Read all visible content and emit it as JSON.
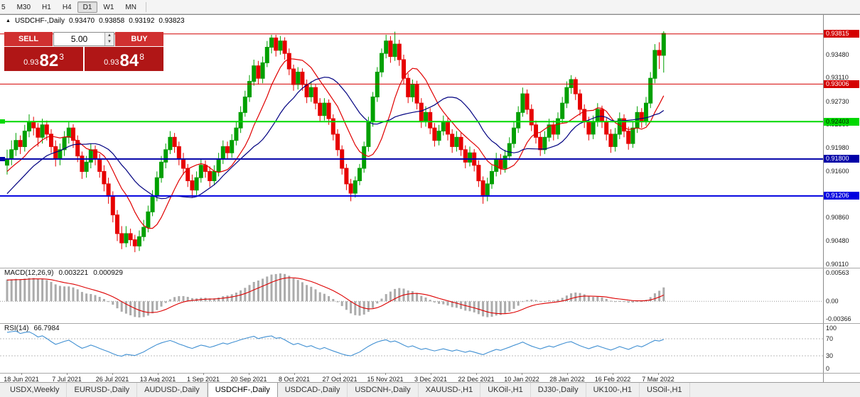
{
  "toolbar": {
    "timeframes": [
      {
        "label": "5",
        "active": false
      },
      {
        "label": "M30",
        "active": false
      },
      {
        "label": "H1",
        "active": false
      },
      {
        "label": "H4",
        "active": false
      },
      {
        "label": "D1",
        "active": true
      },
      {
        "label": "W1",
        "active": false
      },
      {
        "label": "MN",
        "active": false
      }
    ]
  },
  "chart": {
    "icon": "▲",
    "symbol_period": "USDCHF-,Daily",
    "open": "0.93470",
    "high": "0.93858",
    "low": "0.93192",
    "close": "0.93823"
  },
  "trade": {
    "sell_label": "SELL",
    "buy_label": "BUY",
    "volume": "5.00",
    "bid_prefix": "0.93",
    "bid_big": "82",
    "bid_sup": "3",
    "ask_prefix": "0.93",
    "ask_big": "84",
    "ask_sup": "8"
  },
  "colors": {
    "candle_up": "#00A000",
    "candle_down": "#E60000",
    "ma_fast": "#E00000",
    "ma_slow": "#000080",
    "macd_hist": "#ABABAB",
    "macd_signal": "#DD0000",
    "rsi_line": "#3F8FD2",
    "sell_button": "#D03030",
    "buy_button": "#D03030",
    "price_box": "#B01616"
  },
  "price_axis": {
    "ticks": [
      {
        "label": "0.93480",
        "price": 0.9348
      },
      {
        "label": "0.93110",
        "price": 0.9311
      },
      {
        "label": "0.92730",
        "price": 0.9273
      },
      {
        "label": "0.92360",
        "price": 0.9236
      },
      {
        "label": "0.91980",
        "price": 0.9198
      },
      {
        "label": "0.91600",
        "price": 0.916
      },
      {
        "label": "0.90860",
        "price": 0.9086
      },
      {
        "label": "0.90480",
        "price": 0.9048
      },
      {
        "label": "0.90110",
        "price": 0.9011
      }
    ]
  },
  "chart_data": {
    "type": "candlestick",
    "symbol": "USDCHF-",
    "timeframe": "Daily",
    "price_range": [
      0.9005,
      0.9412
    ],
    "x_labels": [
      "18 Jun 2021",
      "7 Jul 2021",
      "26 Jul 2021",
      "13 Aug 2021",
      "1 Sep 2021",
      "20 Sep 2021",
      "8 Oct 2021",
      "27 Oct 2021",
      "15 Nov 2021",
      "3 Dec 2021",
      "22 Dec 2021",
      "10 Jan 2022",
      "28 Jan 2022",
      "16 Feb 2022",
      "7 Mar 2022"
    ],
    "hlines": [
      {
        "price": 0.93815,
        "label": "0.93815",
        "color": "#D40000",
        "text_color": "#FFFFFF",
        "width": 1
      },
      {
        "price": 0.93006,
        "label": "0.93006",
        "color": "#D40000",
        "text_color": "#FFFFFF",
        "width": 1
      },
      {
        "price": 0.92403,
        "label": "0.92403",
        "color": "#00D800",
        "text_color": "#002200",
        "width": 2
      },
      {
        "price": 0.918,
        "label": "0.91800",
        "color": "#0000A8",
        "text_color": "#FFFFFF",
        "width": 2
      },
      {
        "price": 0.91206,
        "label": "0.91206",
        "color": "#0000E0",
        "text_color": "#FFFFFF",
        "width": 2
      }
    ],
    "moving_averages": [
      {
        "type": "sma",
        "period": 10,
        "color": "#E00000"
      },
      {
        "type": "sma",
        "period": 20,
        "color": "#000080"
      }
    ],
    "warmup_closes": [
      0.896,
      0.8975,
      0.899,
      0.9,
      0.9015,
      0.903,
      0.9025,
      0.9045,
      0.906,
      0.9055,
      0.9075,
      0.909,
      0.9085,
      0.9105,
      0.912,
      0.9115,
      0.9135,
      0.913,
      0.915,
      0.9145,
      0.916,
      0.9155,
      0.9168,
      0.9162,
      0.9172,
      0.9178
    ],
    "candles": [
      [
        0.917,
        0.9195,
        0.9155,
        0.918
      ],
      [
        0.918,
        0.921,
        0.917,
        0.9195
      ],
      [
        0.9195,
        0.9222,
        0.9185,
        0.921
      ],
      [
        0.921,
        0.9218,
        0.9188,
        0.92
      ],
      [
        0.92,
        0.9235,
        0.9192,
        0.9225
      ],
      [
        0.9225,
        0.9252,
        0.9215,
        0.924
      ],
      [
        0.924,
        0.9248,
        0.9218,
        0.923
      ],
      [
        0.923,
        0.9238,
        0.92,
        0.9215
      ],
      [
        0.9215,
        0.9245,
        0.9205,
        0.9235
      ],
      [
        0.9235,
        0.9242,
        0.921,
        0.922
      ],
      [
        0.922,
        0.9228,
        0.919,
        0.92
      ],
      [
        0.92,
        0.921,
        0.9168,
        0.918
      ],
      [
        0.918,
        0.9205,
        0.917,
        0.9195
      ],
      [
        0.9195,
        0.9225,
        0.9185,
        0.9215
      ],
      [
        0.9215,
        0.924,
        0.9205,
        0.923
      ],
      [
        0.923,
        0.9236,
        0.9198,
        0.921
      ],
      [
        0.921,
        0.9218,
        0.9175,
        0.9185
      ],
      [
        0.9185,
        0.9192,
        0.9148,
        0.916
      ],
      [
        0.916,
        0.9185,
        0.915,
        0.9175
      ],
      [
        0.9175,
        0.9205,
        0.9165,
        0.9195
      ],
      [
        0.9195,
        0.9202,
        0.917,
        0.918
      ],
      [
        0.918,
        0.9188,
        0.915,
        0.916
      ],
      [
        0.916,
        0.917,
        0.9128,
        0.914
      ],
      [
        0.914,
        0.915,
        0.9108,
        0.912
      ],
      [
        0.912,
        0.9128,
        0.9078,
        0.909
      ],
      [
        0.909,
        0.9098,
        0.9048,
        0.906
      ],
      [
        0.906,
        0.9072,
        0.9035,
        0.9045
      ],
      [
        0.9045,
        0.9072,
        0.9038,
        0.906
      ],
      [
        0.906,
        0.9068,
        0.904,
        0.905
      ],
      [
        0.905,
        0.9058,
        0.903,
        0.904
      ],
      [
        0.904,
        0.9065,
        0.9032,
        0.9055
      ],
      [
        0.9055,
        0.9082,
        0.9048,
        0.907
      ],
      [
        0.907,
        0.9105,
        0.9062,
        0.9095
      ],
      [
        0.9095,
        0.913,
        0.9088,
        0.912
      ],
      [
        0.912,
        0.916,
        0.9112,
        0.915
      ],
      [
        0.915,
        0.9185,
        0.9142,
        0.9175
      ],
      [
        0.9175,
        0.9205,
        0.9165,
        0.9195
      ],
      [
        0.9195,
        0.9225,
        0.9188,
        0.9215
      ],
      [
        0.9215,
        0.9222,
        0.919,
        0.92
      ],
      [
        0.92,
        0.9208,
        0.917,
        0.918
      ],
      [
        0.918,
        0.919,
        0.9155,
        0.9165
      ],
      [
        0.9165,
        0.9172,
        0.9135,
        0.9145
      ],
      [
        0.9145,
        0.9155,
        0.9118,
        0.913
      ],
      [
        0.913,
        0.916,
        0.9122,
        0.915
      ],
      [
        0.915,
        0.918,
        0.9142,
        0.917
      ],
      [
        0.917,
        0.9178,
        0.915,
        0.916
      ],
      [
        0.916,
        0.9168,
        0.9135,
        0.9145
      ],
      [
        0.9145,
        0.917,
        0.9138,
        0.916
      ],
      [
        0.916,
        0.919,
        0.9152,
        0.918
      ],
      [
        0.918,
        0.921,
        0.9172,
        0.92
      ],
      [
        0.92,
        0.9208,
        0.918,
        0.919
      ],
      [
        0.919,
        0.922,
        0.9182,
        0.921
      ],
      [
        0.921,
        0.924,
        0.9202,
        0.923
      ],
      [
        0.923,
        0.9265,
        0.9222,
        0.9255
      ],
      [
        0.9255,
        0.929,
        0.9248,
        0.928
      ],
      [
        0.928,
        0.9315,
        0.9272,
        0.9305
      ],
      [
        0.9305,
        0.934,
        0.9298,
        0.933
      ],
      [
        0.933,
        0.9338,
        0.93,
        0.931
      ],
      [
        0.931,
        0.9345,
        0.9302,
        0.9335
      ],
      [
        0.9335,
        0.937,
        0.9328,
        0.936
      ],
      [
        0.936,
        0.938,
        0.935,
        0.9375
      ],
      [
        0.9375,
        0.938,
        0.9345,
        0.9355
      ],
      [
        0.9355,
        0.9378,
        0.9348,
        0.937
      ],
      [
        0.937,
        0.9376,
        0.934,
        0.935
      ],
      [
        0.935,
        0.9358,
        0.9315,
        0.9325
      ],
      [
        0.9325,
        0.9332,
        0.929,
        0.93
      ],
      [
        0.93,
        0.9328,
        0.9292,
        0.932
      ],
      [
        0.932,
        0.9326,
        0.929,
        0.93
      ],
      [
        0.93,
        0.9308,
        0.927,
        0.928
      ],
      [
        0.928,
        0.9305,
        0.9272,
        0.9295
      ],
      [
        0.9295,
        0.93,
        0.926,
        0.927
      ],
      [
        0.927,
        0.9278,
        0.924,
        0.925
      ],
      [
        0.925,
        0.9278,
        0.9242,
        0.927
      ],
      [
        0.927,
        0.9276,
        0.9235,
        0.9245
      ],
      [
        0.9245,
        0.9252,
        0.921,
        0.922
      ],
      [
        0.922,
        0.9228,
        0.9185,
        0.9195
      ],
      [
        0.9195,
        0.9202,
        0.9155,
        0.9165
      ],
      [
        0.9165,
        0.9172,
        0.913,
        0.914
      ],
      [
        0.914,
        0.9148,
        0.9112,
        0.9125
      ],
      [
        0.9125,
        0.9152,
        0.9118,
        0.9145
      ],
      [
        0.9145,
        0.9172,
        0.9138,
        0.9165
      ],
      [
        0.9165,
        0.9208,
        0.9158,
        0.92
      ],
      [
        0.92,
        0.9248,
        0.9192,
        0.924
      ],
      [
        0.924,
        0.9288,
        0.9232,
        0.928
      ],
      [
        0.928,
        0.9328,
        0.9272,
        0.932
      ],
      [
        0.932,
        0.9358,
        0.9312,
        0.935
      ],
      [
        0.935,
        0.938,
        0.9342,
        0.937
      ],
      [
        0.937,
        0.9378,
        0.9335,
        0.9345
      ],
      [
        0.9345,
        0.9385,
        0.9338,
        0.9365
      ],
      [
        0.9365,
        0.9372,
        0.933,
        0.934
      ],
      [
        0.934,
        0.9348,
        0.93,
        0.931
      ],
      [
        0.931,
        0.9318,
        0.927,
        0.928
      ],
      [
        0.928,
        0.9308,
        0.9272,
        0.93
      ],
      [
        0.93,
        0.9306,
        0.926,
        0.927
      ],
      [
        0.927,
        0.9278,
        0.923,
        0.924
      ],
      [
        0.924,
        0.9265,
        0.9232,
        0.9255
      ],
      [
        0.9255,
        0.9262,
        0.922,
        0.923
      ],
      [
        0.923,
        0.9238,
        0.92,
        0.921
      ],
      [
        0.921,
        0.9235,
        0.9202,
        0.9225
      ],
      [
        0.9225,
        0.925,
        0.9218,
        0.924
      ],
      [
        0.924,
        0.9246,
        0.921,
        0.922
      ],
      [
        0.922,
        0.9228,
        0.919,
        0.92
      ],
      [
        0.92,
        0.9225,
        0.9192,
        0.9215
      ],
      [
        0.9215,
        0.9222,
        0.9185,
        0.9195
      ],
      [
        0.9195,
        0.9202,
        0.9165,
        0.9175
      ],
      [
        0.9175,
        0.92,
        0.9168,
        0.919
      ],
      [
        0.919,
        0.9196,
        0.916,
        0.917
      ],
      [
        0.917,
        0.9178,
        0.9135,
        0.9145
      ],
      [
        0.9145,
        0.9152,
        0.9108,
        0.912
      ],
      [
        0.912,
        0.915,
        0.9112,
        0.914
      ],
      [
        0.914,
        0.917,
        0.9132,
        0.916
      ],
      [
        0.916,
        0.919,
        0.9152,
        0.918
      ],
      [
        0.918,
        0.9188,
        0.9155,
        0.9165
      ],
      [
        0.9165,
        0.9195,
        0.9158,
        0.9185
      ],
      [
        0.9185,
        0.9215,
        0.9178,
        0.9205
      ],
      [
        0.9205,
        0.924,
        0.9198,
        0.923
      ],
      [
        0.923,
        0.9265,
        0.9222,
        0.9255
      ],
      [
        0.9255,
        0.9295,
        0.9248,
        0.9285
      ],
      [
        0.9285,
        0.9292,
        0.9252,
        0.926
      ],
      [
        0.926,
        0.9268,
        0.9225,
        0.9235
      ],
      [
        0.9235,
        0.9242,
        0.9205,
        0.9215
      ],
      [
        0.9215,
        0.9222,
        0.9185,
        0.9195
      ],
      [
        0.9195,
        0.9225,
        0.9188,
        0.9215
      ],
      [
        0.9215,
        0.9245,
        0.9208,
        0.9235
      ],
      [
        0.9235,
        0.9242,
        0.921,
        0.922
      ],
      [
        0.922,
        0.9255,
        0.9212,
        0.9245
      ],
      [
        0.9245,
        0.928,
        0.9238,
        0.927
      ],
      [
        0.927,
        0.9305,
        0.9262,
        0.9295
      ],
      [
        0.9295,
        0.9315,
        0.9285,
        0.9308
      ],
      [
        0.9308,
        0.9312,
        0.9275,
        0.9285
      ],
      [
        0.9285,
        0.9292,
        0.925,
        0.926
      ],
      [
        0.926,
        0.9268,
        0.923,
        0.924
      ],
      [
        0.924,
        0.9248,
        0.921,
        0.922
      ],
      [
        0.922,
        0.925,
        0.9212,
        0.924
      ],
      [
        0.924,
        0.927,
        0.9232,
        0.926
      ],
      [
        0.926,
        0.9266,
        0.923,
        0.924
      ],
      [
        0.924,
        0.9246,
        0.921,
        0.922
      ],
      [
        0.922,
        0.9228,
        0.919,
        0.92
      ],
      [
        0.92,
        0.923,
        0.9192,
        0.922
      ],
      [
        0.922,
        0.9255,
        0.9212,
        0.9245
      ],
      [
        0.9245,
        0.9252,
        0.9215,
        0.9225
      ],
      [
        0.9225,
        0.9232,
        0.9195,
        0.9205
      ],
      [
        0.9205,
        0.924,
        0.9198,
        0.923
      ],
      [
        0.923,
        0.9265,
        0.9222,
        0.9255
      ],
      [
        0.9255,
        0.9262,
        0.923,
        0.924
      ],
      [
        0.924,
        0.928,
        0.9234,
        0.927
      ],
      [
        0.927,
        0.932,
        0.9262,
        0.931
      ],
      [
        0.931,
        0.9365,
        0.9302,
        0.9355
      ],
      [
        0.9355,
        0.9368,
        0.9325,
        0.9347
      ],
      [
        0.9347,
        0.93858,
        0.93192,
        0.93823
      ]
    ]
  },
  "indicators": {
    "macd": {
      "label": "MACD(12,26,9)",
      "value_main": "0.003221",
      "value_signal": "0.000929",
      "fast": 12,
      "slow": 26,
      "signal": 9,
      "axis_labels": [
        "0.00563",
        "0.00",
        "-0.00366"
      ]
    },
    "rsi": {
      "label": "RSI(14)",
      "value": "66.7984",
      "period": 14,
      "levels": [
        70,
        30
      ],
      "axis_labels": [
        "100",
        "70",
        "30",
        "0"
      ]
    }
  },
  "tabs": [
    {
      "label": "USDX,Weekly",
      "active": false
    },
    {
      "label": "EURUSD-,Daily",
      "active": false
    },
    {
      "label": "AUDUSD-,Daily",
      "active": false
    },
    {
      "label": "USDCHF-,Daily",
      "active": true
    },
    {
      "label": "USDCAD-,Daily",
      "active": false
    },
    {
      "label": "USDCNH-,Daily",
      "active": false
    },
    {
      "label": "XAUUSD-,H1",
      "active": false
    },
    {
      "label": "UKOil-,H1",
      "active": false
    },
    {
      "label": "DJ30-,Daily",
      "active": false
    },
    {
      "label": "UK100-,H1",
      "active": false
    },
    {
      "label": "USOil-,H1",
      "active": false
    }
  ]
}
